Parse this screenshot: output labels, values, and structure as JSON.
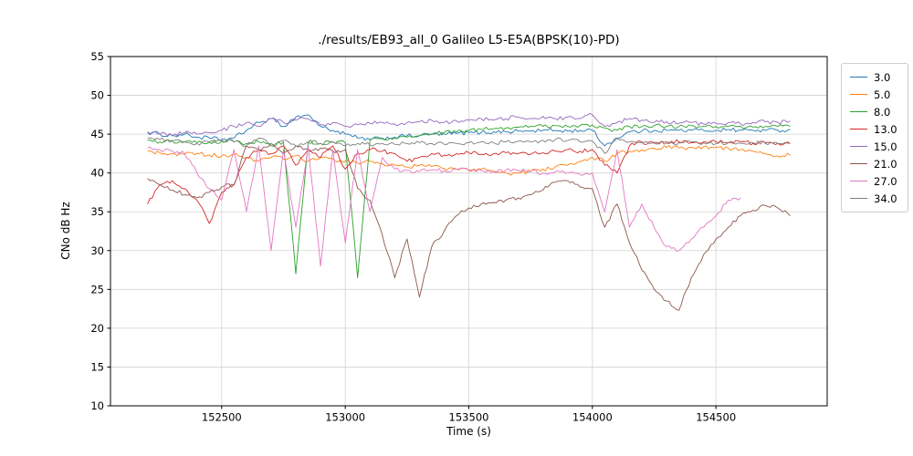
{
  "chart_data": {
    "type": "line",
    "title": "./results/EB93_all_0 Galileo L5-E5A(BPSK(10)-PD)",
    "xlabel": "Time (s)",
    "ylabel": "CNo dB Hz",
    "xlim": [
      152050,
      154950
    ],
    "ylim": [
      10,
      55
    ],
    "xticks": [
      152500,
      153000,
      153500,
      154000,
      154500
    ],
    "yticks": [
      10,
      15,
      20,
      25,
      30,
      35,
      40,
      45,
      50,
      55
    ],
    "grid": true,
    "legend_position": "outside-right",
    "x": [
      152200,
      152250,
      152300,
      152350,
      152400,
      152450,
      152500,
      152550,
      152600,
      152650,
      152700,
      152750,
      152800,
      152850,
      152900,
      152950,
      153000,
      153050,
      153100,
      153150,
      153200,
      153250,
      153300,
      153350,
      153400,
      153450,
      153500,
      153550,
      153600,
      153650,
      153700,
      153750,
      153800,
      153850,
      153900,
      153950,
      154000,
      154050,
      154100,
      154150,
      154200,
      154250,
      154300,
      154350,
      154400,
      154450,
      154500,
      154550,
      154600,
      154650,
      154700,
      154750,
      154800
    ],
    "series": [
      {
        "name": "3.0",
        "color": "#1f77b4",
        "values": [
          45.2,
          45.0,
          44.8,
          45.0,
          44.6,
          44.5,
          44.3,
          44.5,
          45.5,
          46.5,
          47.0,
          46.0,
          47.2,
          47.5,
          46.0,
          45.5,
          45.0,
          44.5,
          44.3,
          44.5,
          44.6,
          44.8,
          44.8,
          45.0,
          45.0,
          45.1,
          45.2,
          45.2,
          45.3,
          45.3,
          45.4,
          45.4,
          45.5,
          45.5,
          45.4,
          45.5,
          45.5,
          43.5,
          44.5,
          45.3,
          45.4,
          45.5,
          45.5,
          45.5,
          45.5,
          45.5,
          45.5,
          45.6,
          45.5,
          45.5,
          45.5,
          45.5,
          45.6
        ]
      },
      {
        "name": "5.0",
        "color": "#ff7f0e",
        "values": [
          42.8,
          42.6,
          42.5,
          42.4,
          42.5,
          42.3,
          42.2,
          42.4,
          42.0,
          41.5,
          42.0,
          41.8,
          42.2,
          41.5,
          42.0,
          41.8,
          41.5,
          41.3,
          41.5,
          41.2,
          41.0,
          40.8,
          41.0,
          40.8,
          40.6,
          40.5,
          40.3,
          40.5,
          40.2,
          40.0,
          40.0,
          40.2,
          40.5,
          40.8,
          41.0,
          41.5,
          42.0,
          41.5,
          42.5,
          42.8,
          43.0,
          43.2,
          43.3,
          43.2,
          43.3,
          43.4,
          43.3,
          43.2,
          43.0,
          42.8,
          42.5,
          42.2,
          42.3
        ]
      },
      {
        "name": "8.0",
        "color": "#2ca02c",
        "values": [
          44.2,
          44.0,
          44.1,
          44.0,
          43.9,
          44.0,
          44.1,
          44.0,
          43.8,
          44.0,
          43.5,
          44.0,
          27.0,
          44.0,
          43.8,
          44.0,
          43.9,
          26.5,
          44.2,
          44.4,
          44.5,
          44.6,
          44.8,
          45.0,
          45.2,
          45.3,
          45.5,
          45.6,
          45.7,
          45.8,
          45.9,
          46.0,
          46.0,
          46.1,
          46.0,
          46.1,
          46.2,
          45.8,
          45.5,
          46.0,
          46.0,
          46.1,
          46.0,
          46.0,
          46.1,
          46.0,
          46.0,
          46.0,
          46.0,
          45.9,
          46.0,
          46.0,
          46.0
        ]
      },
      {
        "name": "13.0",
        "color": "#d62728",
        "values": [
          36.0,
          38.5,
          39.0,
          38.0,
          36.5,
          33.5,
          37.5,
          38.5,
          42.0,
          43.0,
          42.5,
          43.5,
          41.0,
          43.0,
          42.0,
          43.5,
          40.5,
          42.5,
          43.0,
          42.8,
          42.5,
          41.5,
          42.0,
          42.5,
          42.3,
          42.5,
          42.6,
          42.4,
          42.5,
          42.6,
          42.5,
          42.4,
          42.6,
          42.8,
          43.0,
          42.8,
          43.0,
          41.0,
          40.0,
          43.5,
          44.0,
          43.8,
          44.0,
          44.0,
          43.9,
          44.0,
          44.0,
          43.9,
          44.0,
          43.8,
          43.9,
          43.8,
          43.8
        ]
      },
      {
        "name": "15.0",
        "color": "#9467bd",
        "values": [
          45.3,
          45.0,
          44.8,
          45.2,
          45.0,
          45.2,
          45.5,
          46.0,
          46.5,
          46.0,
          47.0,
          46.5,
          46.8,
          47.0,
          46.2,
          46.5,
          46.0,
          46.2,
          46.4,
          46.5,
          46.3,
          46.5,
          46.6,
          46.8,
          46.5,
          46.7,
          46.8,
          47.0,
          46.8,
          47.0,
          47.2,
          47.0,
          47.3,
          47.0,
          47.2,
          47.0,
          47.5,
          46.0,
          46.5,
          47.0,
          46.8,
          46.5,
          46.6,
          46.4,
          46.5,
          46.3,
          46.4,
          46.5,
          46.3,
          46.5,
          46.6,
          46.5,
          46.7
        ]
      },
      {
        "name": "21.0",
        "color": "#8c564b",
        "values": [
          39.3,
          38.5,
          37.8,
          37.2,
          36.8,
          37.5,
          38.2,
          38.5,
          43.5,
          43.0,
          43.8,
          42.5,
          43.5,
          43.0,
          43.2,
          42.8,
          43.0,
          38.0,
          36.5,
          32.0,
          26.5,
          31.5,
          24.0,
          30.5,
          32.5,
          34.5,
          35.5,
          36.0,
          36.2,
          36.5,
          36.8,
          37.2,
          37.8,
          38.8,
          39.0,
          38.2,
          38.0,
          33.0,
          36.0,
          31.0,
          27.5,
          25.0,
          23.5,
          22.3,
          26.5,
          29.5,
          31.5,
          33.0,
          34.5,
          35.2,
          35.8,
          35.5,
          34.5
        ]
      },
      {
        "name": "27.0",
        "color": "#e377c2",
        "values": [
          43.2,
          43.0,
          42.8,
          42.5,
          40.0,
          38.0,
          36.5,
          43.0,
          35.0,
          43.5,
          30.0,
          43.0,
          33.0,
          43.5,
          28.0,
          43.0,
          31.0,
          43.0,
          35.0,
          42.0,
          40.5,
          40.3,
          40.2,
          40.4,
          40.3,
          40.5,
          40.4,
          40.3,
          40.2,
          40.4,
          40.3,
          40.2,
          40.0,
          40.2,
          40.0,
          39.8,
          40.0,
          35.0,
          43.0,
          33.0,
          36.0,
          33.0,
          30.5,
          30.0,
          31.5,
          33.0,
          34.5,
          36.5,
          36.8,
          null,
          null,
          null,
          null
        ]
      },
      {
        "name": "34.0",
        "color": "#7f7f7f",
        "values": [
          44.5,
          44.3,
          44.2,
          44.0,
          43.8,
          44.0,
          44.2,
          44.0,
          43.5,
          44.5,
          43.8,
          44.2,
          43.5,
          44.0,
          43.8,
          44.0,
          43.5,
          43.8,
          43.6,
          43.8,
          43.7,
          43.8,
          43.9,
          43.8,
          43.7,
          43.8,
          43.9,
          44.0,
          43.9,
          44.0,
          44.1,
          44.0,
          44.2,
          44.3,
          44.2,
          44.0,
          44.1,
          42.5,
          44.5,
          44.0,
          43.9,
          44.0,
          43.8,
          43.9,
          44.0,
          43.9,
          43.8,
          43.9,
          43.8,
          43.9,
          43.8,
          43.8,
          43.8
        ]
      }
    ]
  }
}
